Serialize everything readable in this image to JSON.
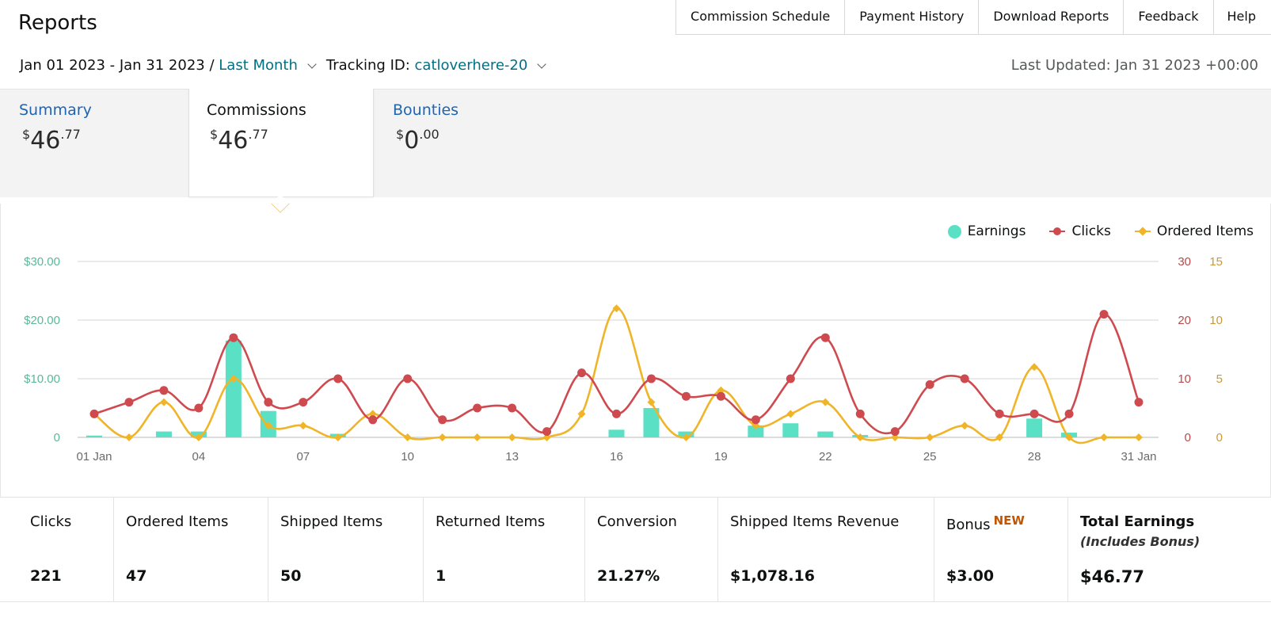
{
  "page": {
    "title": "Reports",
    "nav": [
      "Commission Schedule",
      "Payment History",
      "Download Reports",
      "Feedback",
      "Help"
    ],
    "date_range": "Jan 01 2023 - Jan 31 2023 / ",
    "period_link": "Last Month",
    "tracking_label": "Tracking ID: ",
    "tracking_id": "catloverhere-20",
    "last_updated": "Last Updated: Jan 31 2023 +00:00"
  },
  "tabs": [
    {
      "label": "Summary",
      "currency": "$",
      "whole": "46",
      "cents": ".77"
    },
    {
      "label": "Commissions",
      "currency": "$",
      "whole": "46",
      "cents": ".77"
    },
    {
      "label": "Bounties",
      "currency": "$",
      "whole": "0",
      "cents": ".00"
    }
  ],
  "legend": [
    "Earnings",
    "Clicks",
    "Ordered Items"
  ],
  "colors": {
    "earnings": "#5ae0c4",
    "clicks": "#cf4a4f",
    "ordered": "#f0b429",
    "left_axis": "#5cb89a",
    "right_axis": "#b74a4a",
    "right2_axis": "#c89a3a"
  },
  "chart_data": {
    "type": "line",
    "x": [
      1,
      2,
      3,
      4,
      5,
      6,
      7,
      8,
      9,
      10,
      11,
      12,
      13,
      14,
      15,
      16,
      17,
      18,
      19,
      20,
      21,
      22,
      23,
      24,
      25,
      26,
      27,
      28,
      29,
      30,
      31
    ],
    "x_tick_labels": [
      "01 Jan",
      "04",
      "07",
      "10",
      "13",
      "16",
      "19",
      "22",
      "25",
      "28",
      "31 Jan"
    ],
    "x_tick_positions": [
      1,
      4,
      7,
      10,
      13,
      16,
      19,
      22,
      25,
      28,
      31
    ],
    "series": [
      {
        "name": "Earnings",
        "type": "bar",
        "axis": "left",
        "values": [
          0.3,
          0,
          1.0,
          1.0,
          16.5,
          4.5,
          0,
          0.6,
          0,
          0,
          0,
          0,
          0,
          0,
          0,
          1.3,
          5.0,
          1.0,
          0,
          2.0,
          2.4,
          1.0,
          0.4,
          0,
          0,
          0,
          0,
          3.2,
          0.8,
          0,
          0
        ]
      },
      {
        "name": "Clicks",
        "type": "line",
        "axis": "right",
        "values": [
          4,
          6,
          8,
          5,
          17,
          6,
          6,
          10,
          3,
          10,
          3,
          5,
          5,
          1,
          11,
          4,
          10,
          7,
          7,
          3,
          10,
          17,
          4,
          1,
          9,
          10,
          4,
          4,
          4,
          21,
          6
        ]
      },
      {
        "name": "Ordered Items",
        "type": "line",
        "axis": "right2",
        "values": [
          2,
          0,
          3,
          0,
          5,
          1,
          1,
          0,
          2,
          0,
          0,
          0,
          0,
          0,
          2,
          11,
          3,
          0,
          4,
          1,
          2,
          3,
          0,
          0,
          0,
          1,
          0,
          6,
          0,
          0,
          0
        ]
      }
    ],
    "left_axis": {
      "ticks": [
        "0",
        "$10.00",
        "$20.00",
        "$30.00"
      ],
      "max": 30
    },
    "right_axis": {
      "ticks": [
        "0",
        "10",
        "20",
        "30"
      ],
      "max": 30
    },
    "right2_axis": {
      "ticks": [
        "0",
        "5",
        "10",
        "15"
      ],
      "max": 15
    }
  },
  "stats": [
    {
      "label": "Clicks",
      "value": "221"
    },
    {
      "label": "Ordered Items",
      "value": "47"
    },
    {
      "label": "Shipped Items",
      "value": "50"
    },
    {
      "label": "Returned Items",
      "value": "1"
    },
    {
      "label": "Conversion",
      "value": "21.27%"
    },
    {
      "label": "Shipped Items Revenue",
      "value": "$1,078.16"
    },
    {
      "label": "Bonus",
      "badge": "NEW",
      "value": "$3.00"
    },
    {
      "label": "Total Earnings",
      "sub": "(Includes Bonus)",
      "value": "$46.77"
    }
  ]
}
